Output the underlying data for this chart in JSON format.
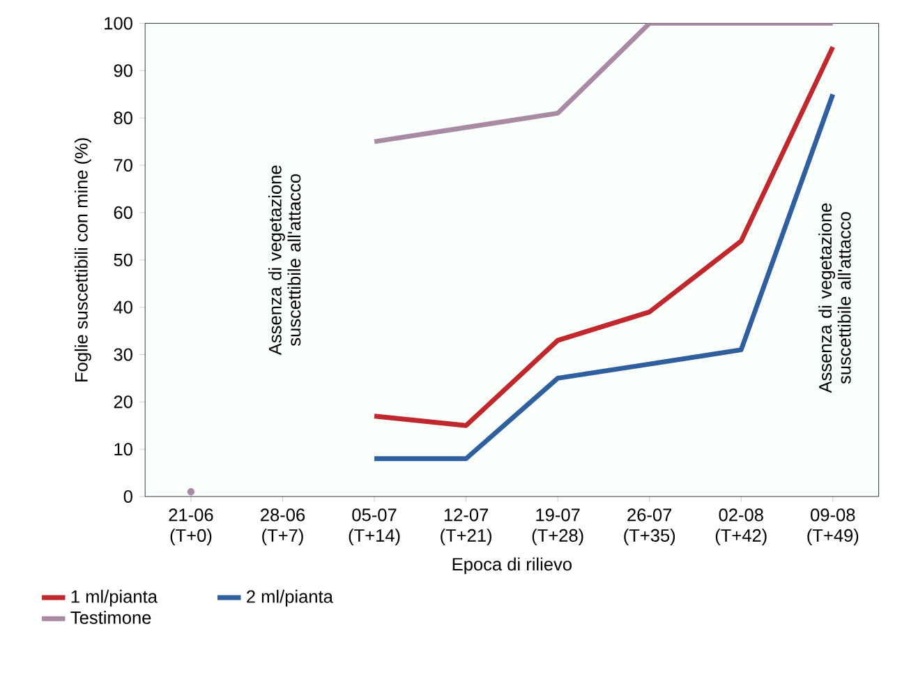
{
  "chart_data": {
    "type": "line",
    "xlabel": "Epoca di rilievo",
    "ylabel": "Foglie suscettibili con mine (%)",
    "categories": [
      "21-06 (T+0)",
      "28-06 (T+7)",
      "05-07 (T+14)",
      "12-07 (T+21)",
      "19-07 (T+28)",
      "26-07 (T+35)",
      "02-08 (T+42)",
      "09-08 (T+49)"
    ],
    "series": [
      {
        "name": "1 ml/pianta",
        "color": "#c0282d",
        "values": [
          null,
          null,
          17,
          15,
          33,
          39,
          54,
          95
        ]
      },
      {
        "name": "2 ml/pianta",
        "color": "#2f5f9e",
        "values": [
          null,
          null,
          8,
          8,
          25,
          28,
          31,
          85
        ]
      },
      {
        "name": "Testimone",
        "color": "#a98aa5",
        "values": [
          1,
          null,
          75,
          78,
          81,
          100,
          100,
          100
        ]
      }
    ],
    "ylim": [
      0,
      100
    ],
    "yticks": [
      0,
      10,
      20,
      30,
      40,
      50,
      60,
      70,
      80,
      90,
      100
    ],
    "annotations": [
      "Assenza di vegetazione suscettibile all'attacco",
      "Assenza di vegetazione suscettibile all'attacco"
    ],
    "legend": "bottom",
    "marker": "none",
    "line_style": "solid",
    "grid": false
  }
}
